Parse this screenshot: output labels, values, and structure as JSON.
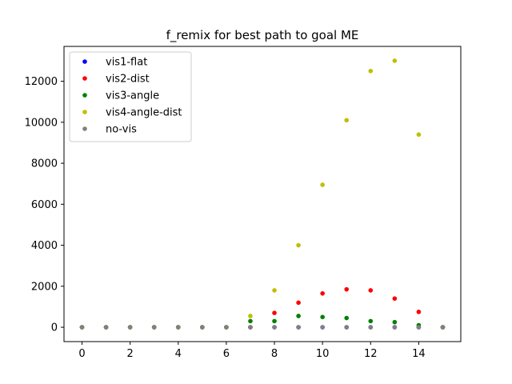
{
  "chart_data": {
    "type": "scatter",
    "title": "f_remix for best path to goal ME",
    "xlabel": "",
    "ylabel": "",
    "xlim": [
      -0.75,
      15.75
    ],
    "ylim": [
      -700,
      13700
    ],
    "xticks": [
      0,
      2,
      4,
      6,
      8,
      10,
      12,
      14
    ],
    "yticks": [
      0,
      2000,
      4000,
      6000,
      8000,
      10000,
      12000
    ],
    "legend_position": "top-left",
    "series": [
      {
        "name": "vis1-flat",
        "color": "#0000ff",
        "x": [
          0,
          1,
          2,
          3,
          4,
          5,
          6,
          7,
          8,
          9,
          10,
          11,
          12,
          13,
          14,
          15
        ],
        "y": [
          0,
          0,
          0,
          0,
          0,
          0,
          0,
          0,
          0,
          0,
          0,
          0,
          0,
          0,
          0,
          0
        ]
      },
      {
        "name": "vis2-dist",
        "color": "#ff0000",
        "x": [
          0,
          1,
          2,
          3,
          4,
          5,
          6,
          7,
          8,
          9,
          10,
          11,
          12,
          13,
          14,
          15
        ],
        "y": [
          0,
          0,
          0,
          0,
          0,
          0,
          0,
          0,
          700,
          1200,
          1650,
          1850,
          1800,
          1400,
          750,
          0
        ]
      },
      {
        "name": "vis3-angle",
        "color": "#008000",
        "x": [
          0,
          1,
          2,
          3,
          4,
          5,
          6,
          7,
          8,
          9,
          10,
          11,
          12,
          13,
          14,
          15
        ],
        "y": [
          0,
          0,
          0,
          0,
          0,
          0,
          0,
          300,
          300,
          550,
          500,
          450,
          300,
          250,
          100,
          0
        ]
      },
      {
        "name": "vis4-angle-dist",
        "color": "#bfbf00",
        "x": [
          0,
          1,
          2,
          3,
          4,
          5,
          6,
          7,
          8,
          9,
          10,
          11,
          12,
          13,
          14,
          15
        ],
        "y": [
          0,
          0,
          0,
          0,
          0,
          0,
          0,
          550,
          1800,
          4000,
          6950,
          10100,
          12500,
          13000,
          9400,
          0
        ]
      },
      {
        "name": "no-vis",
        "color": "#808080",
        "x": [
          0,
          1,
          2,
          3,
          4,
          5,
          6,
          7,
          8,
          9,
          10,
          11,
          12,
          13,
          14,
          15
        ],
        "y": [
          0,
          0,
          0,
          0,
          0,
          0,
          0,
          0,
          0,
          0,
          0,
          0,
          0,
          0,
          0,
          0
        ]
      }
    ]
  }
}
